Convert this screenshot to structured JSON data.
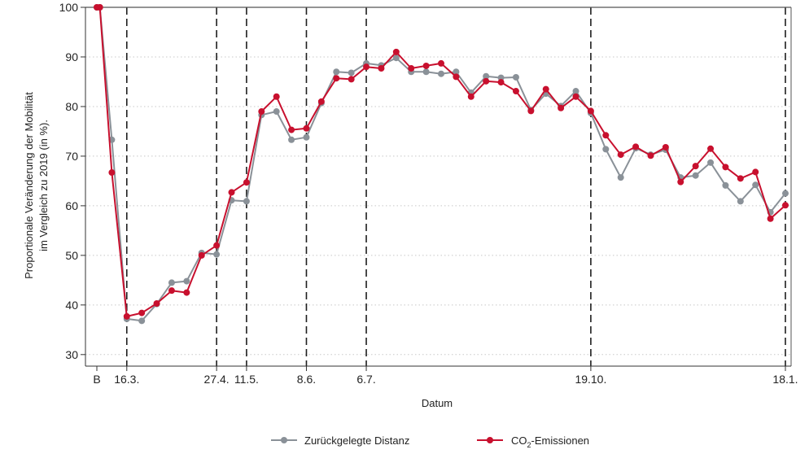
{
  "chart_data": {
    "type": "line",
    "xlabel": "Datum",
    "ylabel_lines": [
      "Proportionale Veränderung der Mobilität",
      "im Vergleich zu 2019 (in %)."
    ],
    "ylim": [
      28,
      100
    ],
    "yticks": [
      30,
      40,
      50,
      60,
      70,
      80,
      90,
      100
    ],
    "grid": "horizontal dotted",
    "x_count": 47,
    "x_tick_labels": [
      {
        "label": "B",
        "x": 0
      },
      {
        "label": "16.3.",
        "x": 2
      },
      {
        "label": "27.4.",
        "x": 8
      },
      {
        "label": "11.5.",
        "x": 10
      },
      {
        "label": "8.6.",
        "x": 14
      },
      {
        "label": "6.7.",
        "x": 18
      },
      {
        "label": "19.10.",
        "x": 33
      },
      {
        "label": "18.1.",
        "x": 46
      }
    ],
    "event_lines_x": [
      2,
      8,
      10,
      14,
      18,
      33,
      46
    ],
    "series": [
      {
        "name": "Zurückgelegte Distanz",
        "color": "#8a9198",
        "x": [
          0,
          0.2,
          1,
          2,
          3,
          4,
          5,
          6,
          7,
          8,
          9,
          10,
          11,
          12,
          13,
          14,
          15,
          16,
          17,
          18,
          19,
          20,
          21,
          22,
          23,
          24,
          25,
          26,
          27,
          28,
          29,
          30,
          31,
          32,
          33,
          34,
          35,
          36,
          37,
          38,
          39,
          40,
          41,
          42,
          43,
          44,
          45,
          46
        ],
        "values": [
          100,
          100,
          73.3,
          37.2,
          36.8,
          40.2,
          44.5,
          44.8,
          50.5,
          50.2,
          61.1,
          60.9,
          78.3,
          79.0,
          73.3,
          73.8,
          80.7,
          87.0,
          86.8,
          88.7,
          88.3,
          89.8,
          87.0,
          87.0,
          86.6,
          87.0,
          82.8,
          86.1,
          85.8,
          85.9,
          79.3,
          82.6,
          80.1,
          83.1,
          78.7,
          71.4,
          65.7,
          71.6,
          70.3,
          71.3,
          65.7,
          66.1,
          68.7,
          64.1,
          60.9,
          64.2,
          58.7,
          62.5
        ]
      },
      {
        "name": "CO2-Emissionen",
        "color": "#c8102e",
        "x": [
          0,
          0.2,
          1,
          2,
          3,
          4,
          5,
          6,
          7,
          8,
          9,
          10,
          11,
          12,
          13,
          14,
          15,
          16,
          17,
          18,
          19,
          20,
          21,
          22,
          23,
          24,
          25,
          26,
          27,
          28,
          29,
          30,
          31,
          32,
          33,
          34,
          35,
          36,
          37,
          38,
          39,
          40,
          41,
          42,
          43,
          44,
          45,
          46
        ],
        "values": [
          100,
          100,
          66.7,
          37.7,
          38.4,
          40.3,
          42.9,
          42.5,
          50.0,
          52.0,
          62.7,
          64.7,
          79.0,
          82.0,
          75.3,
          75.6,
          81.0,
          85.7,
          85.5,
          88.0,
          87.7,
          91.0,
          87.7,
          88.2,
          88.7,
          86.0,
          82.0,
          85.1,
          84.9,
          83.1,
          79.1,
          83.5,
          79.7,
          82.0,
          79.1,
          74.2,
          70.3,
          71.9,
          70.1,
          71.8,
          64.8,
          68.0,
          71.5,
          67.8,
          65.5,
          66.8,
          57.4,
          60.1
        ]
      }
    ],
    "legend": {
      "placement": "bottom",
      "items": [
        {
          "label": "Zurückgelegte Distanz",
          "color": "#8a9198"
        },
        {
          "label": "CO",
          "sub": "2",
          "suffix": "-Emissionen",
          "color": "#c8102e"
        }
      ]
    }
  }
}
